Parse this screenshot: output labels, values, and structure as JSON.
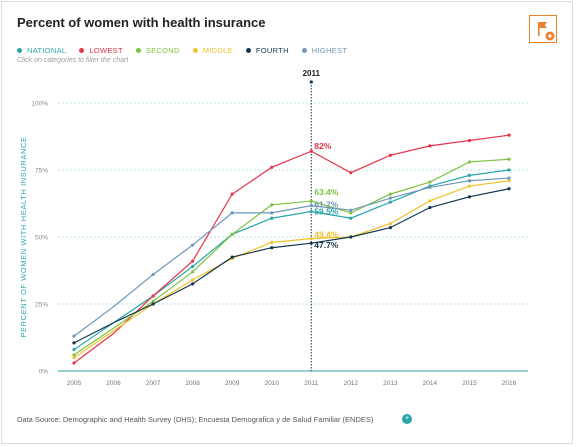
{
  "header": {
    "title": "Percent of women with health insurance",
    "hint": "Click on categories to filter the chart",
    "source": "Data Source: Demographic and Health Survey (DHS); Encuesta Demografica y de Salud Familiar (ENDES)",
    "flag_icon": "flag-icon",
    "info_icon": "plus-icon"
  },
  "legend": [
    {
      "label": "NATIONAL",
      "color": "#2aa6a8"
    },
    {
      "label": "LOWEST",
      "color": "#e8334a"
    },
    {
      "label": "SECOND",
      "color": "#7ec242"
    },
    {
      "label": "MIDDLE",
      "color": "#f2c12e"
    },
    {
      "label": "FOURTH",
      "color": "#14374e"
    },
    {
      "label": "HIGHEST",
      "color": "#6f97b8"
    }
  ],
  "colors": {
    "accent": "#e8822a",
    "grid": "#a9dada",
    "axis_label": "#2aa6a8",
    "marker": "#14374e"
  },
  "chart_data": {
    "type": "line",
    "title": "Percent of women with health insurance",
    "ylabel": "PERCENT OF WOMEN WITH HEALTH INSURANCE",
    "xlabel": "",
    "x": [
      "2005",
      "2006",
      "2007",
      "2008",
      "2009",
      "2010",
      "2011",
      "2012",
      "2013",
      "2014",
      "2015",
      "2016"
    ],
    "ylim": [
      0,
      100
    ],
    "yticks": [
      0,
      25,
      50,
      75,
      100
    ],
    "ytick_labels": [
      "0%",
      "25%",
      "50%",
      "75%",
      "100%"
    ],
    "grid": true,
    "marker_year": "2011",
    "series": [
      {
        "name": "NATIONAL",
        "color": "#2aa6a8",
        "values": [
          8,
          18,
          28,
          39,
          51,
          57,
          59.5,
          57,
          63,
          69,
          73,
          75
        ],
        "label": "59.5%"
      },
      {
        "name": "LOWEST",
        "color": "#e8334a",
        "values": [
          3,
          14,
          28,
          41,
          66,
          76,
          82,
          74,
          80.5,
          84,
          86,
          88
        ],
        "label": "82%"
      },
      {
        "name": "SECOND",
        "color": "#7ec242",
        "values": [
          6,
          16,
          26,
          37,
          51,
          62,
          63.4,
          59,
          66,
          70.5,
          78,
          79
        ],
        "label": "63.4%"
      },
      {
        "name": "MIDDLE",
        "color": "#f2c12e",
        "values": [
          5,
          15,
          25,
          34,
          42,
          48,
          49.4,
          50,
          55,
          63.5,
          69,
          71
        ],
        "label": "49.4%"
      },
      {
        "name": "FOURTH",
        "color": "#14374e",
        "values": [
          10.5,
          18,
          25,
          32.5,
          42.5,
          46,
          47.7,
          50,
          53.5,
          61,
          65,
          68
        ],
        "label": "47.7%"
      },
      {
        "name": "HIGHEST",
        "color": "#6f97b8",
        "values": [
          13,
          24,
          36,
          47,
          59,
          59,
          61.7,
          60,
          64.5,
          68.5,
          71,
          72
        ],
        "label": "61.7%"
      }
    ]
  }
}
